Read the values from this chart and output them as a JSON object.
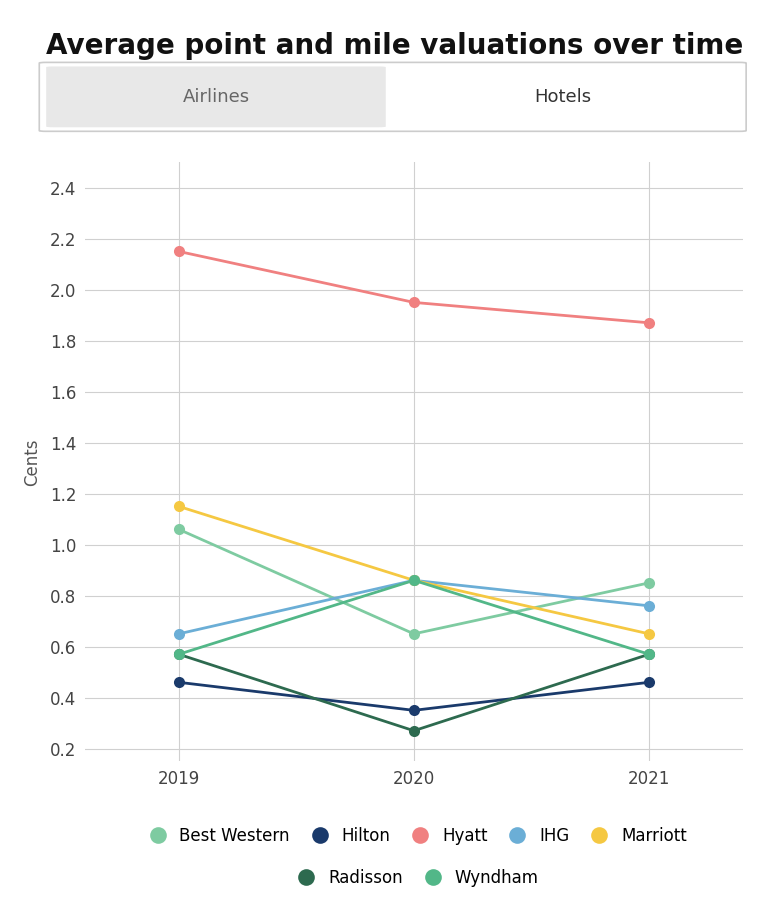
{
  "title": "Average point and mile valuations over time",
  "tab_left": "Airlines",
  "tab_right": "Hotels",
  "ylabel": "Cents",
  "years": [
    2019,
    2020,
    2021
  ],
  "series": {
    "Best Western": {
      "values": [
        1.06,
        0.65,
        0.85
      ],
      "color": "#7ecba1"
    },
    "Hilton": {
      "values": [
        0.46,
        0.35,
        0.46
      ],
      "color": "#1a3a6b"
    },
    "Hyatt": {
      "values": [
        2.15,
        1.95,
        1.87
      ],
      "color": "#f08080"
    },
    "IHG": {
      "values": [
        0.65,
        0.86,
        0.76
      ],
      "color": "#6baed6"
    },
    "Marriott": {
      "values": [
        1.15,
        0.86,
        0.65
      ],
      "color": "#f5c842"
    },
    "Radisson": {
      "values": [
        0.57,
        0.27,
        0.57
      ],
      "color": "#2d6a4f"
    },
    "Wyndham": {
      "values": [
        0.57,
        0.86,
        0.57
      ],
      "color": "#52b788"
    }
  },
  "ylim": [
    0.15,
    2.5
  ],
  "yticks": [
    0.2,
    0.4,
    0.6,
    0.8,
    1.0,
    1.2,
    1.4,
    1.6,
    1.8,
    2.0,
    2.2,
    2.4
  ],
  "background_color": "#ffffff",
  "grid_color": "#d0d0d0",
  "title_fontsize": 20,
  "tick_fontsize": 12,
  "ylabel_fontsize": 12,
  "tab_fontsize": 13,
  "legend_fontsize": 12
}
